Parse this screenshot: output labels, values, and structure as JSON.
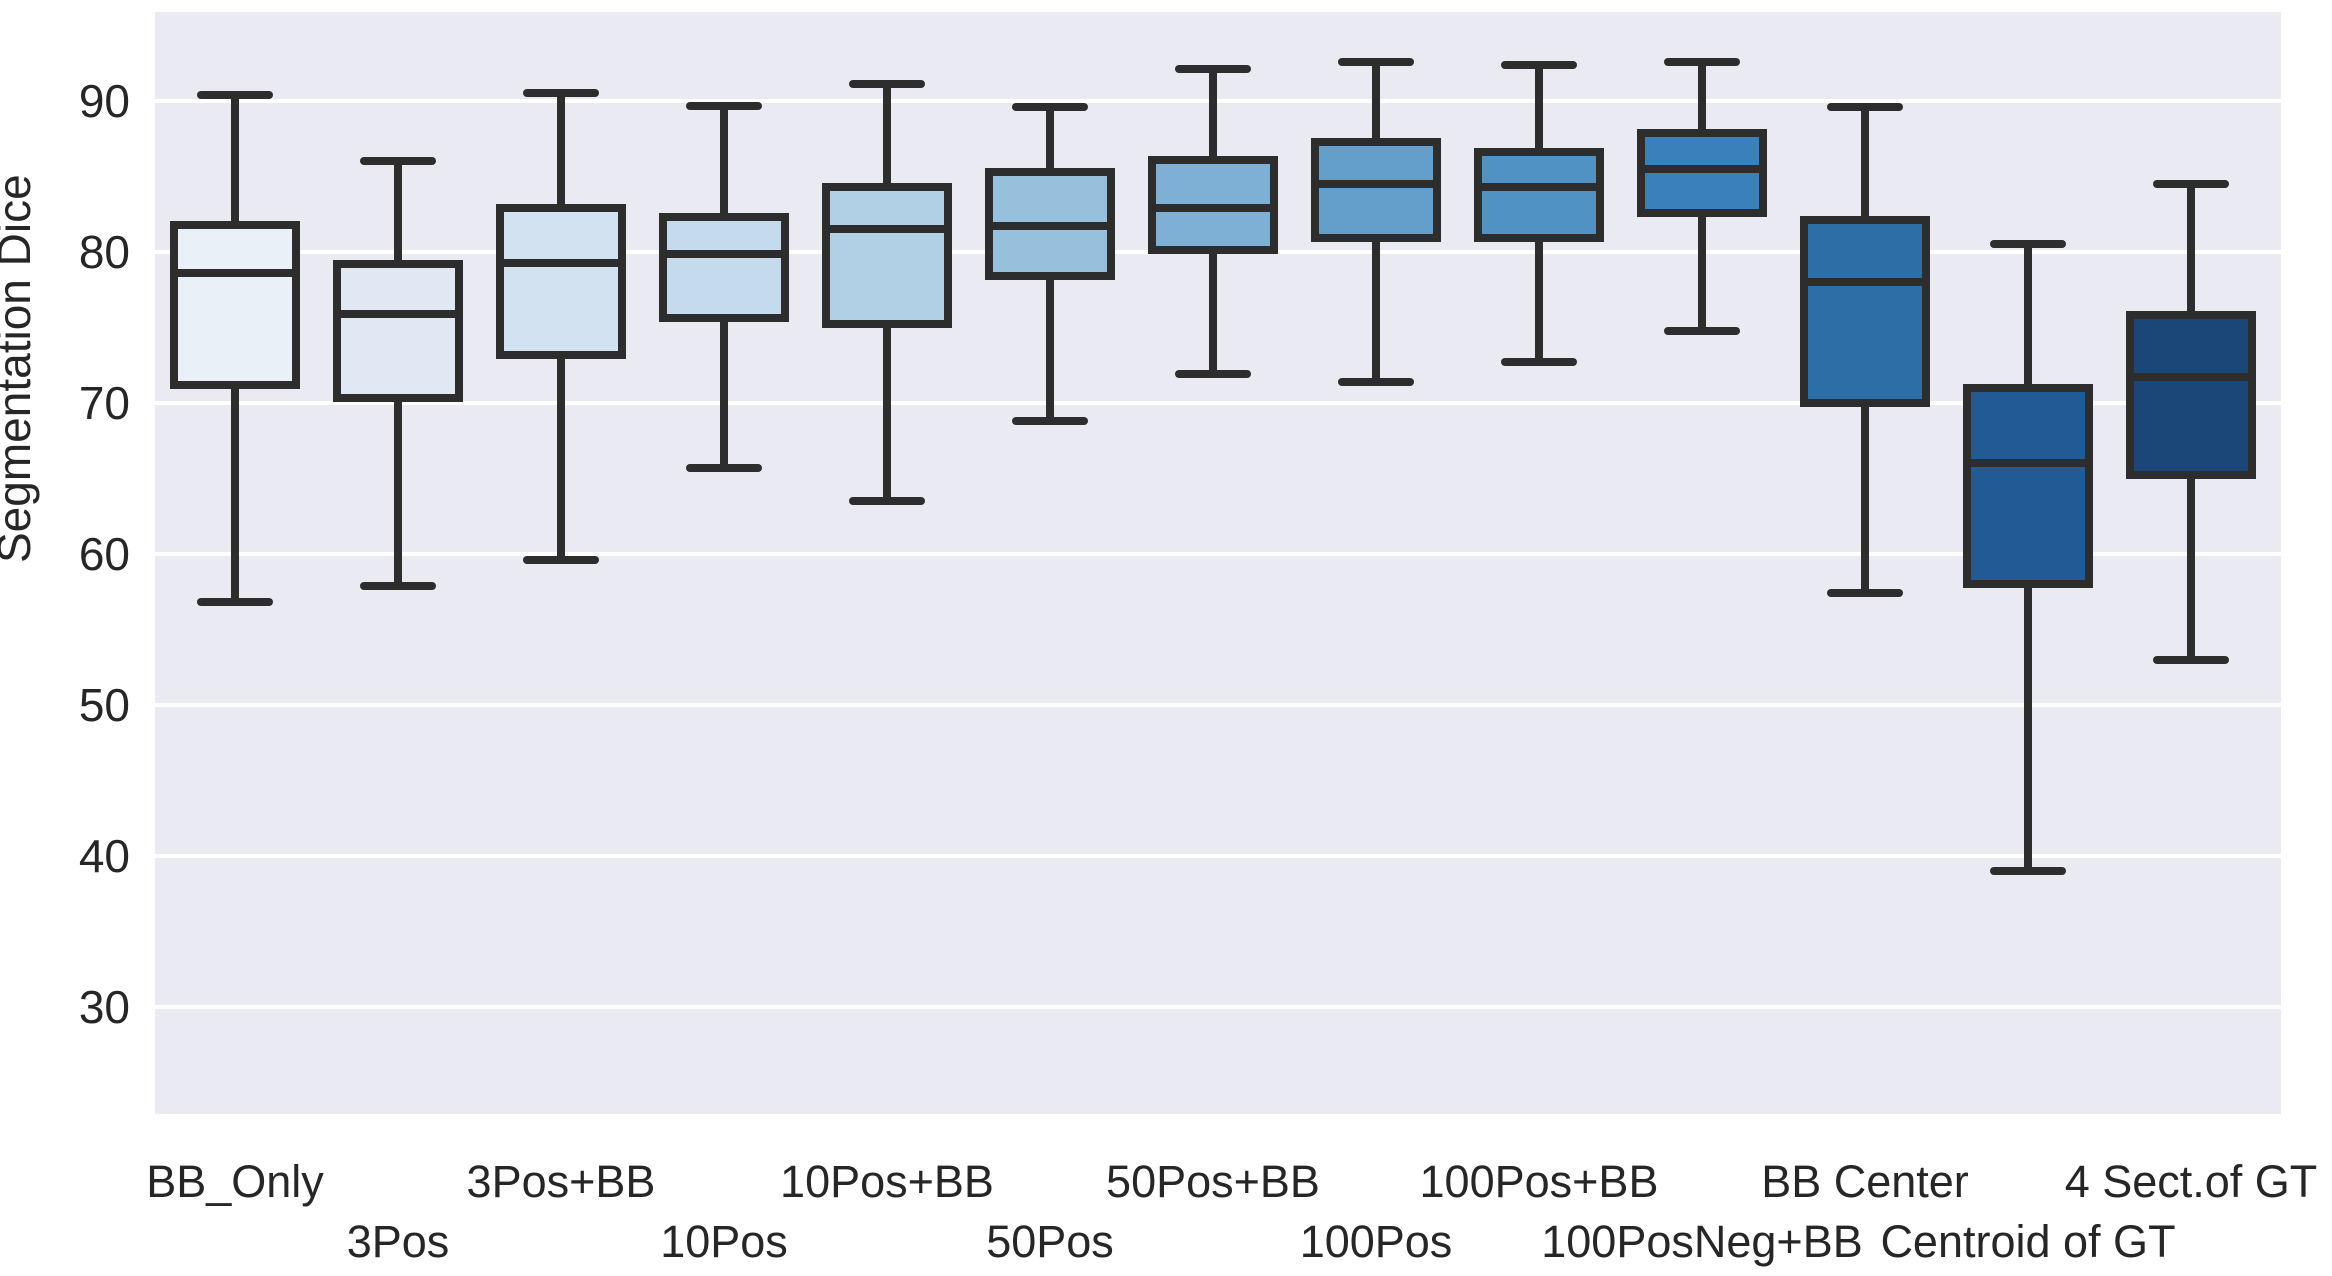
{
  "chart_data": {
    "type": "box",
    "title": "",
    "xlabel": "",
    "ylabel": "Segmentation Dice",
    "grid": "horizontal-white-on-gray",
    "legend": "none",
    "ylim": [
      23,
      96
    ],
    "y_ticks": [
      90,
      80,
      70,
      60,
      50,
      40,
      30
    ],
    "categories": [
      "BB_Only",
      "3Pos",
      "3Pos+BB",
      "10Pos",
      "10Pos+BB",
      "50Pos",
      "50Pos+BB",
      "100Pos",
      "100Pos+BB",
      "100PosNeg+BB",
      "BB Center",
      "Centroid of GT",
      "4 Sect.of GT"
    ],
    "label_rows": [
      1,
      2,
      1,
      2,
      1,
      2,
      1,
      2,
      1,
      2,
      1,
      2,
      1
    ],
    "series": [
      {
        "name": "BB_Only",
        "whisker_low": 56.8,
        "q1": 71.2,
        "median": 78.6,
        "q3": 81.8,
        "whisker_high": 90.4
      },
      {
        "name": "3Pos",
        "whisker_low": 57.9,
        "q1": 70.3,
        "median": 75.9,
        "q3": 79.2,
        "whisker_high": 86.0
      },
      {
        "name": "3Pos+BB",
        "whisker_low": 59.6,
        "q1": 73.2,
        "median": 79.3,
        "q3": 82.9,
        "whisker_high": 90.5
      },
      {
        "name": "10Pos",
        "whisker_low": 65.7,
        "q1": 75.6,
        "median": 79.9,
        "q3": 82.3,
        "whisker_high": 89.7
      },
      {
        "name": "10Pos+BB",
        "whisker_low": 63.5,
        "q1": 75.2,
        "median": 81.5,
        "q3": 84.3,
        "whisker_high": 91.1
      },
      {
        "name": "50Pos",
        "whisker_low": 68.8,
        "q1": 78.4,
        "median": 81.7,
        "q3": 85.3,
        "whisker_high": 89.6
      },
      {
        "name": "50Pos+BB",
        "whisker_low": 71.9,
        "q1": 80.1,
        "median": 82.9,
        "q3": 86.1,
        "whisker_high": 92.1
      },
      {
        "name": "100Pos",
        "whisker_low": 71.4,
        "q1": 80.9,
        "median": 84.5,
        "q3": 87.3,
        "whisker_high": 92.6
      },
      {
        "name": "100Pos+BB",
        "whisker_low": 72.7,
        "q1": 80.9,
        "median": 84.3,
        "q3": 86.6,
        "whisker_high": 92.4
      },
      {
        "name": "100PosNeg+BB",
        "whisker_low": 74.8,
        "q1": 82.6,
        "median": 85.5,
        "q3": 87.9,
        "whisker_high": 92.6
      },
      {
        "name": "BB Center",
        "whisker_low": 57.4,
        "q1": 70.0,
        "median": 78.0,
        "q3": 82.1,
        "whisker_high": 89.6
      },
      {
        "name": "Centroid of GT",
        "whisker_low": 39.0,
        "q1": 58.0,
        "median": 66.0,
        "q3": 71.0,
        "whisker_high": 80.5
      },
      {
        "name": "4 Sect.of GT",
        "whisker_low": 53.0,
        "q1": 65.2,
        "median": 71.7,
        "q3": 75.8,
        "whisker_high": 84.5
      }
    ],
    "box_fill_colors": [
      "#eaf0f8",
      "#dfe8f3",
      "#d3e2f0",
      "#c5daec",
      "#b1cfe5",
      "#97c0dc",
      "#7db0d4",
      "#649fcb",
      "#5092c3",
      "#3a80ba",
      "#2d6ea7",
      "#215a95",
      "#1b4678"
    ],
    "line_color": "#2d2d2d",
    "plot_background_color": "#eaeaf2",
    "gridline_color": "#ffffff"
  }
}
